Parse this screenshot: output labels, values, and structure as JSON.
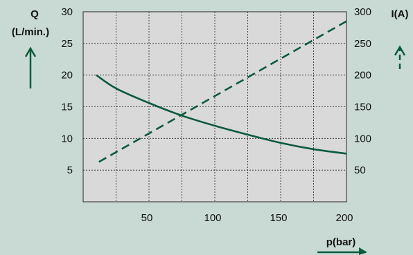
{
  "colors": {
    "background": "#c9dad4",
    "plot_background": "#d9d9d9",
    "series": "#0b5a3c",
    "grid": "#222222"
  },
  "chart_data": {
    "type": "line",
    "title": "",
    "grid": true,
    "x_axis": {
      "label": "p(bar)",
      "range": [
        0,
        200
      ],
      "ticks": [
        50,
        100,
        150,
        200
      ],
      "grid_at": [
        25,
        50,
        75,
        100,
        125,
        150,
        175
      ]
    },
    "y_left": {
      "label_line1": "Q",
      "label_line2": "(L/min.)",
      "range": [
        0,
        30
      ],
      "ticks": [
        5,
        10,
        15,
        20,
        25,
        30
      ],
      "grid_at": [
        5,
        10,
        15,
        20,
        25
      ]
    },
    "y_right": {
      "label": "I(A)",
      "range": [
        0,
        300
      ],
      "ticks": [
        50,
        100,
        150,
        200,
        250,
        300
      ]
    },
    "series": [
      {
        "axis": "left",
        "style": "solid",
        "x": [
          10,
          25,
          50,
          75,
          100,
          125,
          150,
          175,
          200
        ],
        "y": [
          20,
          17.9,
          15.6,
          13.6,
          12.0,
          10.6,
          9.3,
          8.3,
          7.6
        ]
      },
      {
        "axis": "right",
        "style": "dashed",
        "x": [
          12,
          200
        ],
        "y": [
          63,
          285
        ]
      }
    ]
  }
}
